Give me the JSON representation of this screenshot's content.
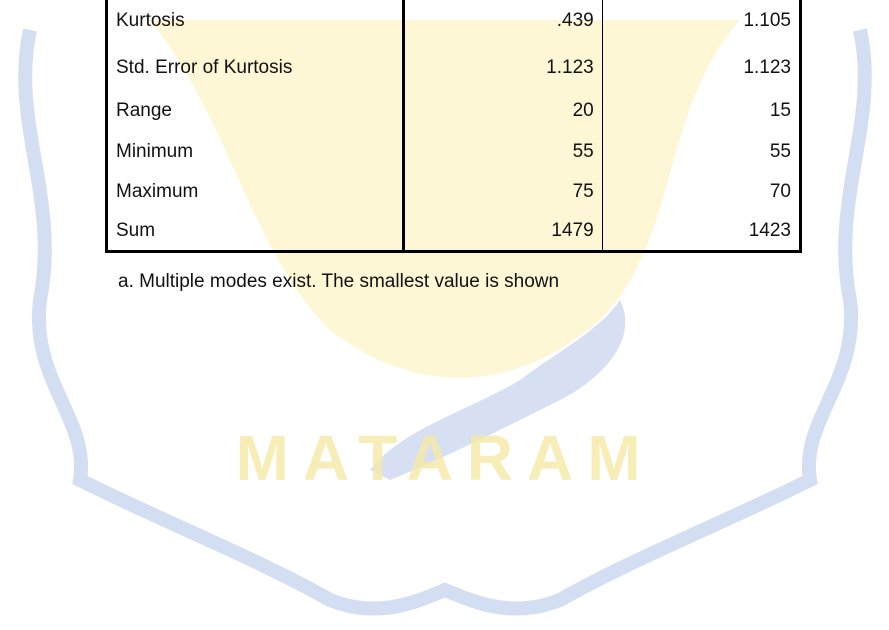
{
  "watermark": {
    "text": "MATARAM"
  },
  "table": {
    "rows": [
      [
        "Kurtosis",
        ".439",
        "1.105"
      ],
      [
        "Std. Error of Kurtosis",
        "1.123",
        "1.123"
      ],
      [
        "Range",
        "20",
        "15"
      ],
      [
        "Minimum",
        "55",
        "55"
      ],
      [
        "Maximum",
        "75",
        "70"
      ],
      [
        "Sum",
        "1479",
        "1423"
      ]
    ]
  },
  "footnote": "a. Multiple modes exist. The smallest value is shown"
}
